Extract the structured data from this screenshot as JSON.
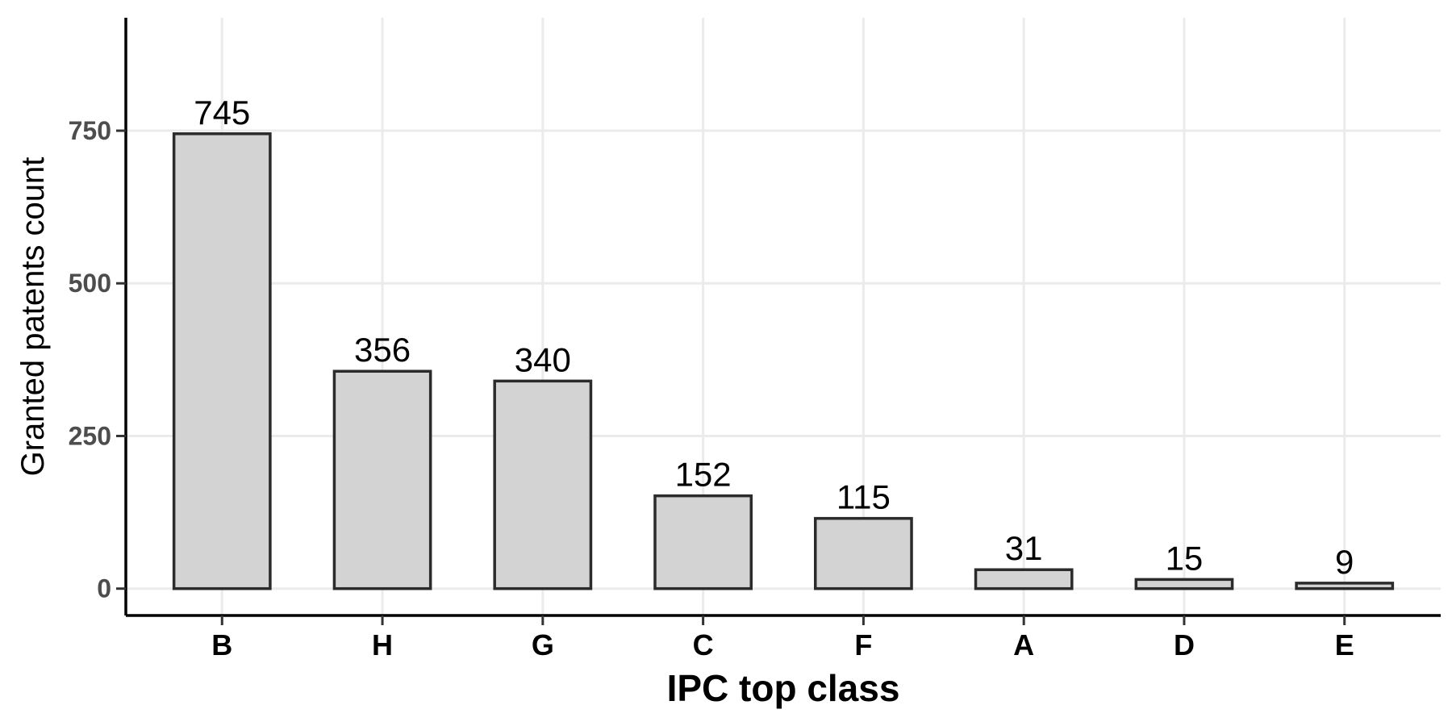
{
  "chart_data": {
    "type": "bar",
    "categories": [
      "B",
      "H",
      "G",
      "C",
      "F",
      "A",
      "D",
      "E"
    ],
    "values": [
      745,
      356,
      340,
      152,
      115,
      31,
      15,
      9
    ],
    "data_labels": [
      "745",
      "356",
      "340",
      "152",
      "115",
      "31",
      "15",
      "9"
    ],
    "title": "",
    "xlabel": "IPC top class",
    "ylabel": "Granted patents count",
    "ylim": [
      -44,
      935
    ],
    "yticks": [
      0,
      250,
      500,
      750
    ],
    "ytick_labels": [
      "0",
      "250",
      "500",
      "750"
    ],
    "grid": true,
    "legend": "none",
    "colors": {
      "bar_fill": "#d3d3d3",
      "bar_stroke": "#2b2b2b",
      "grid": "#ebebeb",
      "axis": "#000000",
      "ytick_text": "#4d4d4d"
    }
  }
}
